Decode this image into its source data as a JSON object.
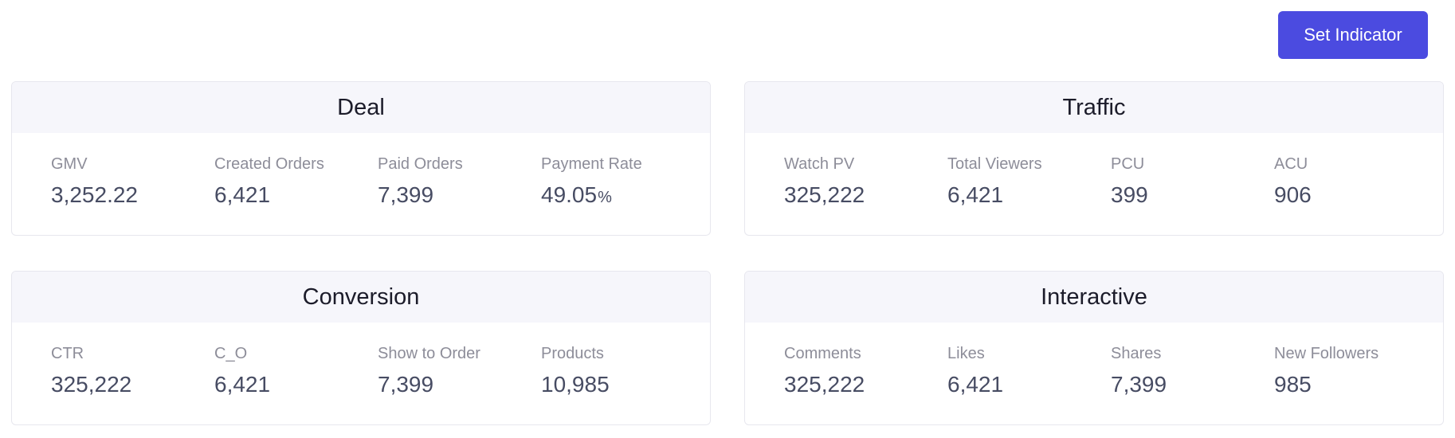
{
  "toolbar": {
    "set_indicator_label": "Set Indicator"
  },
  "panels": {
    "deal": {
      "title": "Deal",
      "metrics": [
        {
          "label": "GMV",
          "value": "3,252.22"
        },
        {
          "label": "Created Orders",
          "value": "6,421"
        },
        {
          "label": "Paid Orders",
          "value": "7,399"
        },
        {
          "label": "Payment Rate",
          "value": "49.05",
          "unit": "%"
        }
      ]
    },
    "traffic": {
      "title": "Traffic",
      "metrics": [
        {
          "label": "Watch PV",
          "value": "325,222"
        },
        {
          "label": "Total Viewers",
          "value": "6,421"
        },
        {
          "label": "PCU",
          "value": "399"
        },
        {
          "label": "ACU",
          "value": "906"
        }
      ]
    },
    "conversion": {
      "title": "Conversion",
      "metrics": [
        {
          "label": "CTR",
          "value": "325,222"
        },
        {
          "label": "C_O",
          "value": "6,421"
        },
        {
          "label": "Show to Order",
          "value": "7,399"
        },
        {
          "label": "Products",
          "value": "10,985"
        }
      ]
    },
    "interactive": {
      "title": "Interactive",
      "metrics": [
        {
          "label": "Comments",
          "value": "325,222"
        },
        {
          "label": "Likes",
          "value": "6,421"
        },
        {
          "label": "Shares",
          "value": "7,399"
        },
        {
          "label": "New Followers",
          "value": "985"
        }
      ]
    }
  },
  "colors": {
    "accent": "#4b4be0",
    "header_bg": "#f6f6fb",
    "label": "#8d8d99",
    "value": "#474c63"
  }
}
